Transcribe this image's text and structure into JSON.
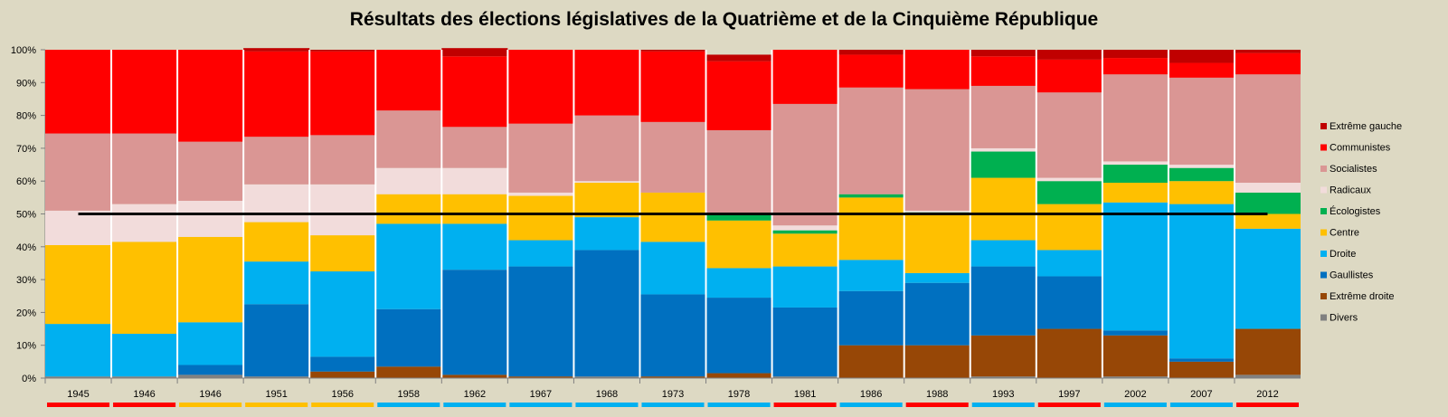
{
  "chart_data": {
    "type": "bar",
    "stacked": true,
    "title": "Résultats des élections législatives de la Quatrième et de la Cinquième République",
    "xlabel": "",
    "ylabel": "",
    "ylim": [
      0,
      100
    ],
    "yticks": [
      "0%",
      "10%",
      "20%",
      "30%",
      "40%",
      "50%",
      "60%",
      "70%",
      "80%",
      "90%",
      "100%"
    ],
    "reference_line": 50,
    "categories": [
      "1945",
      "1946",
      "1946",
      "1951",
      "1956",
      "1958",
      "1962",
      "1967",
      "1968",
      "1973",
      "1978",
      "1981",
      "1986",
      "1988",
      "1993",
      "1997",
      "2002",
      "2007",
      "2012"
    ],
    "legend_position": "right",
    "series": [
      {
        "name": "Divers",
        "color": "#808080",
        "values": [
          0.5,
          0.5,
          1,
          0.5,
          0,
          0,
          0,
          0,
          0.5,
          0,
          0,
          0.5,
          0,
          0,
          0.5,
          0,
          0.5,
          0,
          1
        ]
      },
      {
        "name": "Extrême droite",
        "color": "#974706",
        "values": [
          0,
          0,
          0,
          0,
          2,
          3.5,
          1,
          0.5,
          0,
          0.5,
          1.5,
          0,
          10,
          10,
          12.5,
          15,
          12.5,
          5,
          14
        ]
      },
      {
        "name": "Gaullistes",
        "color": "#0070c0",
        "values": [
          0,
          0,
          3,
          22,
          4.5,
          17.5,
          32,
          33.5,
          38.5,
          25,
          23,
          21,
          16.5,
          19,
          21,
          16,
          1.5,
          1,
          0
        ]
      },
      {
        "name": "Droite",
        "color": "#00b0f0",
        "values": [
          16,
          13,
          13,
          13,
          26,
          26,
          14,
          8,
          10,
          16,
          9,
          12.5,
          9.5,
          3,
          8,
          8,
          39,
          47,
          30.5
        ]
      },
      {
        "name": "Centre",
        "color": "#ffc000",
        "values": [
          24,
          28,
          26,
          12,
          11,
          9,
          9,
          13.5,
          10.5,
          15,
          14.5,
          10,
          19,
          18,
          19,
          14,
          6,
          7,
          4.5
        ]
      },
      {
        "name": "Écologistes",
        "color": "#00b050",
        "values": [
          0,
          0,
          0,
          0,
          0,
          0,
          0,
          0,
          0,
          0,
          2,
          1,
          1,
          0.5,
          8,
          7,
          5.5,
          4,
          6.5
        ]
      },
      {
        "name": "Radicaux",
        "color": "#f2dcdb",
        "values": [
          10.5,
          11.5,
          11,
          11.5,
          15.5,
          8,
          8,
          1,
          0.5,
          0,
          0,
          1.5,
          0,
          0.5,
          1,
          1,
          1,
          1,
          3
        ]
      },
      {
        "name": "Socialistes",
        "color": "#da9694",
        "values": [
          23.5,
          21.5,
          18,
          14.5,
          15,
          17.5,
          12.5,
          21,
          20,
          21.5,
          25.5,
          37,
          32.5,
          37,
          19,
          26,
          26.5,
          26.5,
          33
        ]
      },
      {
        "name": "Communistes",
        "color": "#ff0000",
        "values": [
          25.5,
          25.5,
          28,
          26,
          25.5,
          18.5,
          21.5,
          22.5,
          20,
          21.5,
          21,
          16.5,
          10,
          12,
          9,
          10,
          5,
          4.5,
          6.5
        ]
      },
      {
        "name": "Extrême gauche",
        "color": "#c00000",
        "values": [
          0,
          0,
          0,
          1,
          0.5,
          0,
          2.5,
          0,
          0,
          0.5,
          2,
          0,
          1.5,
          0,
          2,
          3,
          2.5,
          4,
          1
        ]
      }
    ],
    "legend_order": [
      "Extrême gauche",
      "Communistes",
      "Socialistes",
      "Radicaux",
      "Écologistes",
      "Centre",
      "Droite",
      "Gaullistes",
      "Extrême droite",
      "Divers"
    ],
    "category_marker_colors": [
      "#ff0000",
      "#ff0000",
      "#ffc000",
      "#ffc000",
      "#ffc000",
      "#00b0f0",
      "#00b0f0",
      "#00b0f0",
      "#00b0f0",
      "#00b0f0",
      "#00b0f0",
      "#ff0000",
      "#00b0f0",
      "#ff0000",
      "#00b0f0",
      "#ff0000",
      "#00b0f0",
      "#00b0f0",
      "#ff0000"
    ]
  }
}
